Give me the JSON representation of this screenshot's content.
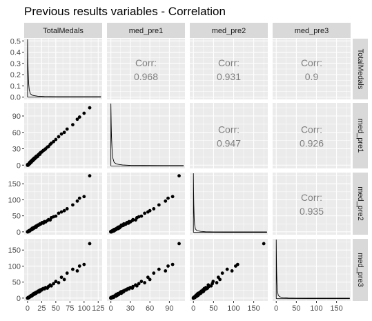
{
  "title": "Previous results variables - Correlation",
  "chart_data": {
    "type": "scatter",
    "variables": [
      "TotalMedals",
      "med_pre1",
      "med_pre2",
      "med_pre3"
    ],
    "correlation_label": "Corr:",
    "correlations": [
      {
        "row": "TotalMedals",
        "col": "med_pre1",
        "value": "0.968"
      },
      {
        "row": "TotalMedals",
        "col": "med_pre2",
        "value": "0.931"
      },
      {
        "row": "TotalMedals",
        "col": "med_pre3",
        "value": "0.9"
      },
      {
        "row": "med_pre1",
        "col": "med_pre2",
        "value": "0.947"
      },
      {
        "row": "med_pre1",
        "col": "med_pre3",
        "value": "0.926"
      },
      {
        "row": "med_pre2",
        "col": "med_pre3",
        "value": "0.935"
      }
    ],
    "x_axes": [
      {
        "variable": "TotalMedals",
        "range": [
          -6,
          132
        ],
        "ticks": [
          0,
          25,
          50,
          75,
          100,
          125
        ],
        "tick_labels": [
          "0",
          "25",
          "50",
          "75",
          "100",
          "125"
        ]
      },
      {
        "variable": "med_pre1",
        "range": [
          -6,
          114
        ],
        "ticks": [
          0,
          30,
          60,
          90
        ],
        "tick_labels": [
          "0",
          "30",
          "60",
          "90"
        ]
      },
      {
        "variable": "med_pre2",
        "range": [
          -9,
          185
        ],
        "ticks": [
          0,
          50,
          100,
          150
        ],
        "tick_labels": [
          "0",
          "50",
          "100",
          "150"
        ]
      },
      {
        "variable": "med_pre3",
        "range": [
          -9,
          185
        ],
        "ticks": [
          0,
          50,
          100,
          150
        ],
        "tick_labels": [
          "0",
          "50",
          "100",
          "150"
        ]
      }
    ],
    "y_axes": [
      {
        "variable": "TotalMedals",
        "range": [
          -0.02,
          0.52
        ],
        "ticks": [
          0,
          0.1,
          0.2,
          0.3,
          0.4,
          0.5
        ],
        "tick_labels": [
          "0.0",
          "0.1",
          "0.2",
          "0.3",
          "0.4",
          "0.5"
        ]
      },
      {
        "variable": "med_pre1",
        "range": [
          -6,
          114
        ],
        "ticks": [
          0,
          30,
          60,
          90
        ],
        "tick_labels": [
          "0",
          "30",
          "60",
          "90"
        ]
      },
      {
        "variable": "med_pre2",
        "range": [
          -9,
          185
        ],
        "ticks": [
          0,
          50,
          100,
          150
        ],
        "tick_labels": [
          "0",
          "50",
          "100",
          "150"
        ]
      },
      {
        "variable": "med_pre3",
        "range": [
          -9,
          185
        ],
        "ticks": [
          0,
          50,
          100,
          150
        ],
        "tick_labels": [
          "0",
          "50",
          "100",
          "150"
        ]
      }
    ],
    "density_peak": 0.48,
    "points": [
      [
        0,
        0,
        0,
        0
      ],
      [
        0,
        0,
        0,
        0
      ],
      [
        0,
        0,
        0,
        0
      ],
      [
        0,
        0,
        0,
        0
      ],
      [
        0,
        0,
        0,
        0
      ],
      [
        0,
        1,
        0,
        0
      ],
      [
        1,
        0,
        1,
        0
      ],
      [
        1,
        1,
        0,
        1
      ],
      [
        1,
        1,
        1,
        1
      ],
      [
        1,
        0,
        1,
        2
      ],
      [
        2,
        1,
        2,
        1
      ],
      [
        2,
        2,
        1,
        2
      ],
      [
        2,
        2,
        3,
        2
      ],
      [
        3,
        2,
        3,
        3
      ],
      [
        3,
        3,
        2,
        3
      ],
      [
        3,
        4,
        4,
        2
      ],
      [
        4,
        3,
        4,
        5
      ],
      [
        4,
        5,
        3,
        4
      ],
      [
        5,
        4,
        6,
        5
      ],
      [
        5,
        6,
        5,
        6
      ],
      [
        6,
        5,
        7,
        6
      ],
      [
        6,
        7,
        6,
        8
      ],
      [
        7,
        6,
        8,
        7
      ],
      [
        7,
        8,
        9,
        6
      ],
      [
        8,
        8,
        7,
        9
      ],
      [
        8,
        9,
        10,
        8
      ],
      [
        9,
        8,
        9,
        11
      ],
      [
        9,
        10,
        12,
        9
      ],
      [
        10,
        9,
        11,
        12
      ],
      [
        10,
        11,
        10,
        13
      ],
      [
        11,
        12,
        13,
        11
      ],
      [
        12,
        11,
        14,
        14
      ],
      [
        12,
        13,
        12,
        15
      ],
      [
        13,
        12,
        15,
        13
      ],
      [
        14,
        14,
        16,
        17
      ],
      [
        15,
        14,
        14,
        16
      ],
      [
        15,
        16,
        18,
        15
      ],
      [
        16,
        15,
        17,
        19
      ],
      [
        17,
        17,
        19,
        18
      ],
      [
        18,
        16,
        21,
        20
      ],
      [
        19,
        19,
        20,
        22
      ],
      [
        20,
        19,
        22,
        19
      ],
      [
        21,
        21,
        23,
        24
      ],
      [
        22,
        20,
        25,
        21
      ],
      [
        23,
        23,
        24,
        26
      ],
      [
        25,
        24,
        27,
        25
      ],
      [
        26,
        25,
        29,
        28
      ],
      [
        28,
        27,
        27,
        30
      ],
      [
        30,
        28,
        32,
        29
      ],
      [
        32,
        30,
        31,
        33
      ],
      [
        35,
        33,
        35,
        31
      ],
      [
        37,
        34,
        38,
        36
      ],
      [
        40,
        38,
        37,
        41
      ],
      [
        42,
        40,
        44,
        38
      ],
      [
        46,
        43,
        47,
        45
      ],
      [
        50,
        47,
        49,
        52
      ],
      [
        55,
        52,
        58,
        48
      ],
      [
        60,
        57,
        62,
        65
      ],
      [
        65,
        60,
        66,
        58
      ],
      [
        70,
        66,
        72,
        78
      ],
      [
        80,
        74,
        84,
        90
      ],
      [
        88,
        84,
        96,
        85
      ],
      [
        92,
        88,
        105,
        100
      ],
      [
        100,
        95,
        110,
        105
      ],
      [
        110,
        105,
        175,
        170
      ]
    ]
  }
}
